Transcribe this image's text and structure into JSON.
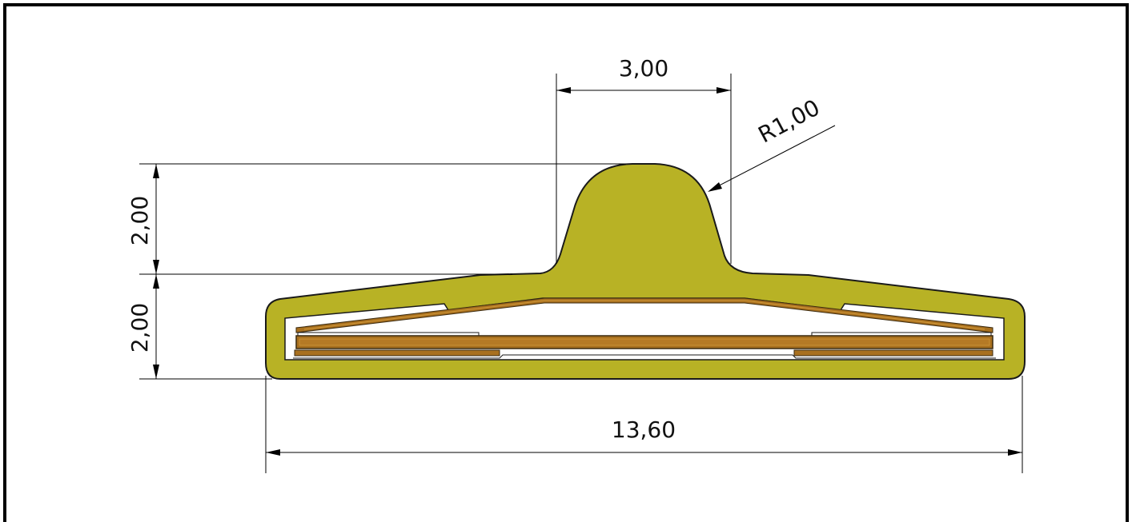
{
  "drawing": {
    "colors": {
      "frame": "#000000",
      "seal_body": "#b8b225",
      "seal_outline": "#1a1a1a",
      "copper_strip": "#a8701f",
      "copper_highlight": "#c98c2e",
      "cavity": "#ffffff",
      "dimension_line": "#000000"
    },
    "dimensions": {
      "top_width": "3,00",
      "radius": "R1,00",
      "upper_height": "2,00",
      "lower_height": "2,00",
      "overall_width": "13,60"
    }
  }
}
